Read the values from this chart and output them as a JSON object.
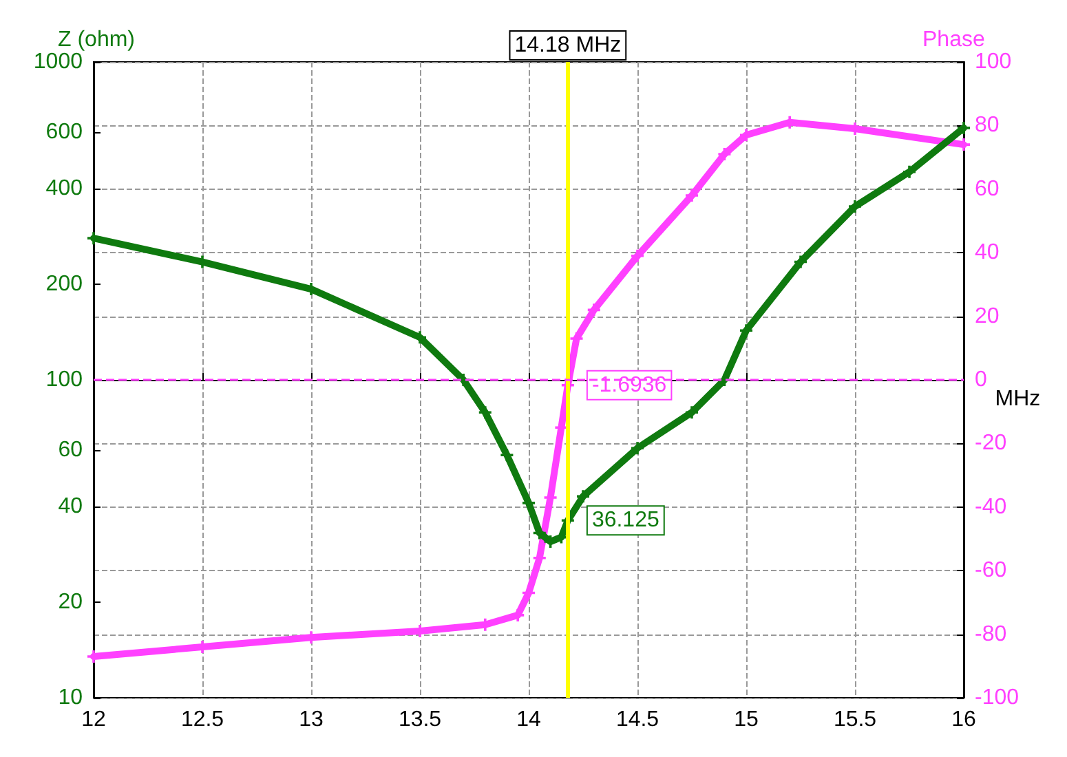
{
  "chart_data": {
    "type": "line",
    "ylabel": "Z (ohm)",
    "y2label": "Phase",
    "xlabel": "MHz",
    "xlim": [
      12,
      16
    ],
    "xticks": [
      12,
      12.5,
      13,
      13.5,
      14,
      14.5,
      15,
      15.5,
      16
    ],
    "ylim": [
      10,
      1000
    ],
    "yticks": [
      10,
      20,
      40,
      60,
      100,
      200,
      400,
      600,
      1000
    ],
    "y2lim": [
      -100,
      100
    ],
    "y2ticks": [
      -100,
      -80,
      -60,
      -40,
      -20,
      0,
      20,
      40,
      60,
      80,
      100
    ],
    "log": "y",
    "grid": true,
    "marker": "cross",
    "line_style": "solid",
    "ref_lines": [
      {
        "axis": "x",
        "value": 14.18,
        "label": "14.18 MHz",
        "color": "#ffff00",
        "line_style": "solid"
      },
      {
        "axis": "y2",
        "value": 0,
        "color": "#ff40ff",
        "line_style": "dashed"
      }
    ],
    "series": [
      {
        "color": "#0f7a0f",
        "x": [
          12,
          12.5,
          13,
          13.5,
          13.7,
          13.8,
          13.9,
          14,
          14.05,
          14.1,
          14.15,
          14.18,
          14.25,
          14.5,
          14.75,
          14.9,
          15,
          15.25,
          15.5,
          15.75,
          16
        ],
        "values": [
          279,
          235,
          193,
          136,
          100,
          79,
          58,
          41,
          33,
          31,
          32,
          36.125,
          43,
          61,
          79,
          100,
          143,
          235,
          351,
          451,
          620
        ],
        "value_labels": [
          null,
          null,
          null,
          null,
          null,
          null,
          null,
          null,
          null,
          null,
          null,
          "36.125",
          null,
          null,
          null,
          null,
          null,
          null,
          null,
          null,
          null
        ]
      },
      {
        "color": "#ff40ff",
        "axis": "y2",
        "x": [
          12,
          12.5,
          13,
          13.5,
          13.8,
          13.95,
          14,
          14.05,
          14.1,
          14.15,
          14.18,
          14.22,
          14.3,
          14.5,
          14.75,
          14.9,
          15,
          15.2,
          15.5,
          16
        ],
        "values": [
          -87,
          -84,
          -81,
          -79,
          -77,
          -74,
          -67,
          -56,
          -37,
          -15,
          -1.6936,
          13,
          22,
          39,
          58,
          71,
          77,
          81,
          79,
          74
        ],
        "value_labels": [
          null,
          null,
          null,
          null,
          null,
          null,
          null,
          null,
          null,
          null,
          "-1.6936",
          null,
          null,
          null,
          null,
          null,
          null,
          null,
          null,
          null
        ]
      }
    ]
  }
}
